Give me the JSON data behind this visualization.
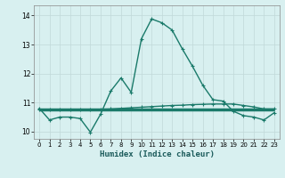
{
  "xlabel": "Humidex (Indice chaleur)",
  "background_color": "#d8f0f0",
  "grid_color": "#c0d8d8",
  "line_color": "#1a7a6a",
  "xlim": [
    -0.5,
    23.5
  ],
  "ylim": [
    9.75,
    14.35
  ],
  "yticks": [
    10,
    11,
    12,
    13,
    14
  ],
  "xticks": [
    0,
    1,
    2,
    3,
    4,
    5,
    6,
    7,
    8,
    9,
    10,
    11,
    12,
    13,
    14,
    15,
    16,
    17,
    18,
    19,
    20,
    21,
    22,
    23
  ],
  "line1_x": [
    0,
    1,
    2,
    3,
    4,
    5,
    6,
    7,
    8,
    9,
    10,
    11,
    12,
    13,
    14,
    15,
    16,
    17,
    18,
    19,
    20,
    21,
    22,
    23
  ],
  "line1_y": [
    10.8,
    10.4,
    10.5,
    10.5,
    10.45,
    9.98,
    10.6,
    11.4,
    11.85,
    11.35,
    13.2,
    13.88,
    13.75,
    13.5,
    12.85,
    12.25,
    11.6,
    11.1,
    11.05,
    10.7,
    10.55,
    10.5,
    10.4,
    10.65
  ],
  "line2_x": [
    0,
    1,
    2,
    3,
    4,
    5,
    6,
    7,
    8,
    9,
    10,
    11,
    12,
    13,
    14,
    15,
    16,
    17,
    18,
    19,
    20,
    21,
    22,
    23
  ],
  "line2_y": [
    10.75,
    10.75,
    10.75,
    10.76,
    10.76,
    10.76,
    10.77,
    10.78,
    10.8,
    10.82,
    10.84,
    10.86,
    10.88,
    10.9,
    10.91,
    10.93,
    10.94,
    10.95,
    10.95,
    10.95,
    10.9,
    10.85,
    10.78,
    10.78
  ],
  "line3_x": [
    0,
    1,
    2,
    3,
    4,
    5,
    6,
    7,
    8,
    9,
    10,
    11,
    12,
    13,
    14,
    15,
    16,
    17,
    18,
    19,
    20,
    21,
    22,
    23
  ],
  "line3_y": [
    10.76,
    10.76,
    10.76,
    10.76,
    10.76,
    10.76,
    10.76,
    10.76,
    10.76,
    10.76,
    10.76,
    10.76,
    10.76,
    10.76,
    10.76,
    10.76,
    10.76,
    10.76,
    10.76,
    10.76,
    10.76,
    10.76,
    10.76,
    10.76
  ]
}
